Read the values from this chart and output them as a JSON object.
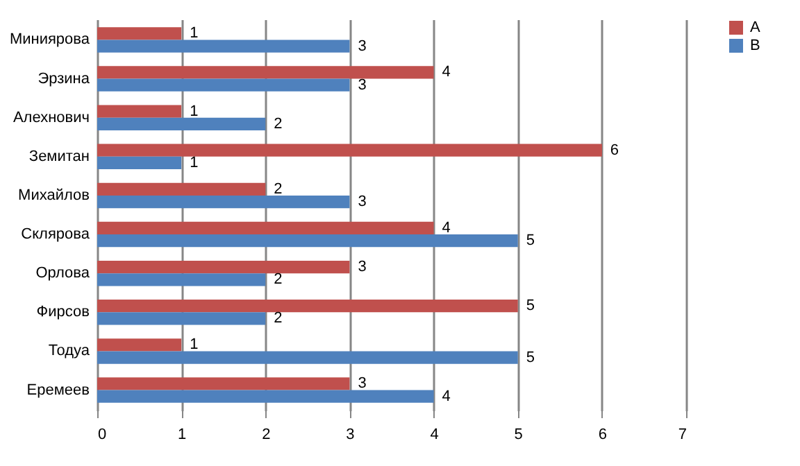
{
  "chart_data": {
    "type": "bar",
    "orientation": "horizontal",
    "categories": [
      "Миниярова",
      "Эрзина",
      "Алехнович",
      "Земитан",
      "Михайлов",
      "Склярова",
      "Орлова",
      "Фирсов",
      "Тодуа",
      "Еремеев"
    ],
    "series": [
      {
        "name": "A",
        "color": "#c0504d",
        "values": [
          1,
          4,
          1,
          6,
          2,
          4,
          3,
          5,
          1,
          3
        ]
      },
      {
        "name": "B",
        "color": "#4f81bd",
        "values": [
          3,
          3,
          2,
          1,
          3,
          5,
          2,
          2,
          5,
          4
        ]
      }
    ],
    "xlim": [
      0,
      7
    ],
    "xticks": [
      0,
      1,
      2,
      3,
      4,
      5,
      6,
      7
    ],
    "grid": "x",
    "legend": "right",
    "data_labels": true
  }
}
